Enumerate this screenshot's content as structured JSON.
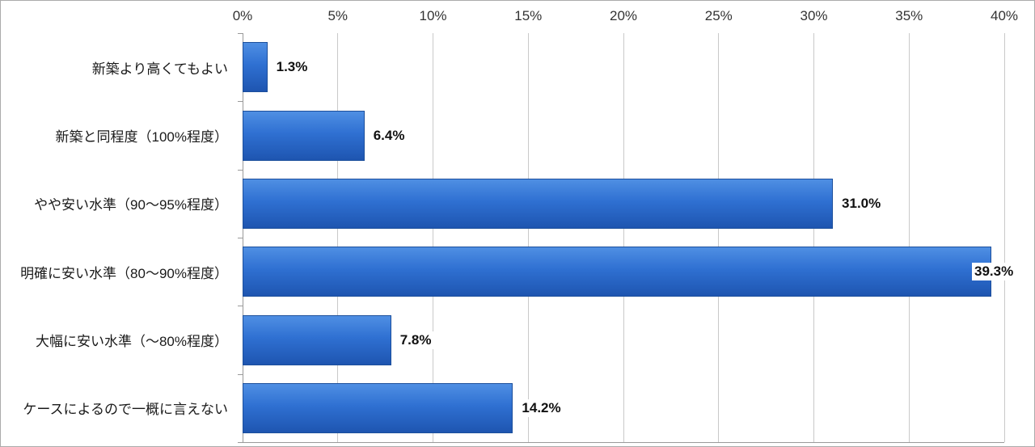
{
  "chart_data": {
    "type": "bar",
    "orientation": "horizontal",
    "title": "",
    "categories": [
      "新築より高くてもよい",
      "新築と同程度（100%程度）",
      "やや安い水準（90〜95%程度）",
      "明確に安い水準（80〜90%程度）",
      "大幅に安い水準（〜80%程度）",
      "ケースによるので一概に言えない"
    ],
    "values": [
      1.3,
      6.4,
      31.0,
      39.3,
      7.8,
      14.2
    ],
    "value_labels": [
      "1.3%",
      "6.4%",
      "31.0%",
      "39.3%",
      "7.8%",
      "14.2%"
    ],
    "xlim": [
      0,
      40
    ],
    "x_ticks": [
      {
        "value": 0,
        "label": "0%"
      },
      {
        "value": 5,
        "label": "5%"
      },
      {
        "value": 10,
        "label": "10%"
      },
      {
        "value": 15,
        "label": "15%"
      },
      {
        "value": 20,
        "label": "20%"
      },
      {
        "value": 25,
        "label": "25%"
      },
      {
        "value": 30,
        "label": "30%"
      },
      {
        "value": 35,
        "label": "35%"
      },
      {
        "value": 40,
        "label": "40%"
      }
    ],
    "grid": true,
    "legend": false,
    "xlabel": "",
    "ylabel": "",
    "style": {
      "bar_gradient": [
        "#4f8fe3",
        "#2f70d2",
        "#1e55b0"
      ],
      "bar_border_color": "#1c4f9c",
      "gridline_color": "#c9c9c9",
      "axis_line_color": "#9a9a9a",
      "tick_label_color": "#333333",
      "category_label_color": "#1a1a1a",
      "value_label_color": "#111111",
      "background": "#ffffff"
    }
  }
}
